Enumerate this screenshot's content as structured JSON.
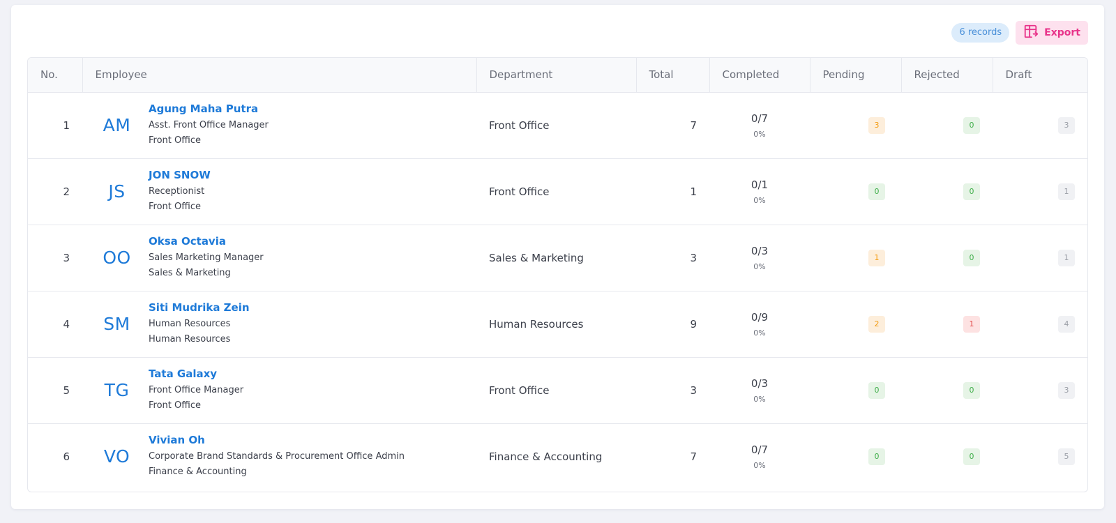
{
  "toolbar": {
    "records_label": "6 records",
    "export_label": "Export"
  },
  "columns": [
    "No.",
    "Employee",
    "Department",
    "Total",
    "Completed",
    "Pending",
    "Rejected",
    "Draft"
  ],
  "colors": {
    "accent": "#1e7ad8",
    "export": "#e8338a",
    "pending_active": "#f39c12",
    "pending_active_bg": "#fdeedb",
    "zero": "#3fae49",
    "zero_bg": "#e6f4e6",
    "rejected_active": "#e24a4a",
    "rejected_active_bg": "#fde2e2",
    "draft": "#9a9ea6",
    "draft_bg": "#f0f1f4"
  },
  "rows": [
    {
      "no": "1",
      "initials": "AM",
      "name": "Agung Maha Putra",
      "position": "Asst. Front Office Manager",
      "unit": "Front Office",
      "department": "Front Office",
      "total": "7",
      "completed": "0/7",
      "completed_pct": "0%",
      "pending": "3",
      "rejected": "0",
      "draft": "3"
    },
    {
      "no": "2",
      "initials": "JS",
      "name": "JON SNOW",
      "position": "Receptionist",
      "unit": "Front Office",
      "department": "Front Office",
      "total": "1",
      "completed": "0/1",
      "completed_pct": "0%",
      "pending": "0",
      "rejected": "0",
      "draft": "1"
    },
    {
      "no": "3",
      "initials": "OO",
      "name": "Oksa Octavia",
      "position": "Sales Marketing Manager",
      "unit": "Sales & Marketing",
      "department": "Sales & Marketing",
      "total": "3",
      "completed": "0/3",
      "completed_pct": "0%",
      "pending": "1",
      "rejected": "0",
      "draft": "1"
    },
    {
      "no": "4",
      "initials": "SM",
      "name": "Siti Mudrika Zein",
      "position": "Human Resources",
      "unit": "Human Resources",
      "department": "Human Resources",
      "total": "9",
      "completed": "0/9",
      "completed_pct": "0%",
      "pending": "2",
      "rejected": "1",
      "draft": "4"
    },
    {
      "no": "5",
      "initials": "TG",
      "name": "Tata Galaxy",
      "position": "Front Office Manager",
      "unit": "Front Office",
      "department": "Front Office",
      "total": "3",
      "completed": "0/3",
      "completed_pct": "0%",
      "pending": "0",
      "rejected": "0",
      "draft": "3"
    },
    {
      "no": "6",
      "initials": "VO",
      "name": "Vivian Oh",
      "position": "Corporate Brand Standards & Procurement Office Admin",
      "unit": "Finance & Accounting",
      "department": "Finance & Accounting",
      "total": "7",
      "completed": "0/7",
      "completed_pct": "0%",
      "pending": "0",
      "rejected": "0",
      "draft": "5"
    }
  ]
}
